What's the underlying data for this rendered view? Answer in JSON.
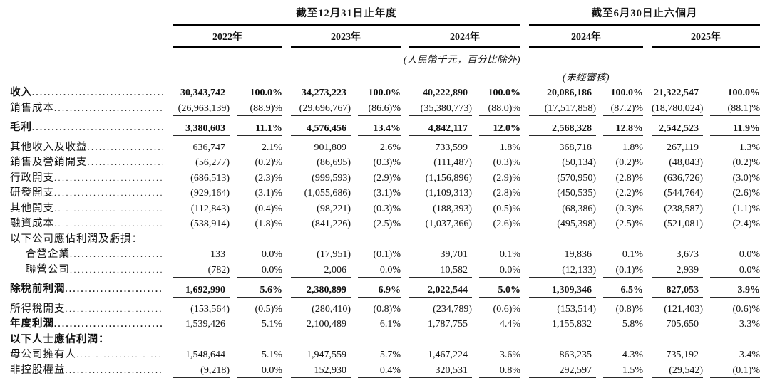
{
  "colors": {
    "background": "#ffffff",
    "text": "#111111",
    "rule": "#000000"
  },
  "table": {
    "period_groups": [
      {
        "title": "截至12月31日止年度",
        "years": [
          "2022年",
          "2023年",
          "2024年"
        ]
      },
      {
        "title": "截至6月30日止六個月",
        "years": [
          "2024年",
          "2025年"
        ]
      }
    ],
    "notes": {
      "currency_note": "(人民幣千元，百分比除外)",
      "unaudited_note": "(未經審核)"
    },
    "rows": [
      {
        "name": "row-revenue",
        "label": "收入",
        "bold": true,
        "leader": true,
        "values": [
          "30,343,742",
          "100.0%",
          "34,273,223",
          "100.0%",
          "40,222,890",
          "100.0%",
          "20,086,186",
          "100.0%",
          "21,322,547",
          "100.0%"
        ]
      },
      {
        "name": "row-cost-of-sales",
        "label": "銷售成本",
        "leader": true,
        "underline": true,
        "values": [
          "(26,963,139)",
          "(88.9)%",
          "(29,696,767)",
          "(86.6)%",
          "(35,380,773)",
          "(88.0)%",
          "(17,517,858)",
          "(87.2)%",
          "(18,780,024)",
          "(88.1)%"
        ]
      },
      {
        "name": "row-gross-profit",
        "label": "毛利",
        "bold": true,
        "leader": true,
        "underline": true,
        "gap": true,
        "values": [
          "3,380,603",
          "11.1%",
          "4,576,456",
          "13.4%",
          "4,842,117",
          "12.0%",
          "2,568,328",
          "12.8%",
          "2,542,523",
          "11.9%"
        ]
      },
      {
        "name": "row-other-income",
        "label": "其他收入及收益",
        "leader": true,
        "gap": true,
        "values": [
          "636,747",
          "2.1%",
          "901,809",
          "2.6%",
          "733,599",
          "1.8%",
          "368,718",
          "1.8%",
          "267,119",
          "1.3%"
        ]
      },
      {
        "name": "row-selling-marketing-expenses",
        "label": "銷售及營銷開支",
        "leader": true,
        "values": [
          "(56,277)",
          "(0.2)%",
          "(86,695)",
          "(0.3)%",
          "(111,487)",
          "(0.3)%",
          "(50,134)",
          "(0.2)%",
          "(48,043)",
          "(0.2)%"
        ]
      },
      {
        "name": "row-admin-expenses",
        "label": "行政開支",
        "leader": true,
        "values": [
          "(686,513)",
          "(2.3)%",
          "(999,593)",
          "(2.9)%",
          "(1,156,896)",
          "(2.9)%",
          "(570,950)",
          "(2.8)%",
          "(636,726)",
          "(3.0)%"
        ]
      },
      {
        "name": "row-rd-expenses",
        "label": "研發開支",
        "leader": true,
        "values": [
          "(929,164)",
          "(3.1)%",
          "(1,055,686)",
          "(3.1)%",
          "(1,109,313)",
          "(2.8)%",
          "(450,535)",
          "(2.2)%",
          "(544,764)",
          "(2.6)%"
        ]
      },
      {
        "name": "row-other-expenses",
        "label": "其他開支",
        "leader": true,
        "values": [
          "(112,843)",
          "(0.4)%",
          "(98,221)",
          "(0.3)%",
          "(188,393)",
          "(0.5)%",
          "(68,386)",
          "(0.3)%",
          "(238,587)",
          "(1.1)%"
        ]
      },
      {
        "name": "row-finance-costs",
        "label": "融資成本",
        "leader": true,
        "values": [
          "(538,914)",
          "(1.8)%",
          "(841,226)",
          "(2.5)%",
          "(1,037,366)",
          "(2.6)%",
          "(495,398)",
          "(2.5)%",
          "(521,081)",
          "(2.4)%"
        ]
      },
      {
        "name": "row-share-of-profits-header",
        "label": "以下公司應佔利潤及虧損："
      },
      {
        "name": "row-joint-ventures",
        "label": "合營企業",
        "indent": true,
        "leader": true,
        "values": [
          "133",
          "0.0%",
          "(17,951)",
          "(0.1)%",
          "39,701",
          "0.1%",
          "19,836",
          "0.1%",
          "3,673",
          "0.0%"
        ]
      },
      {
        "name": "row-associates",
        "label": "聯營公司",
        "indent": true,
        "leader": true,
        "underline": true,
        "values": [
          "(782)",
          "0.0%",
          "2,006",
          "0.0%",
          "10,582",
          "0.0%",
          "(12,133)",
          "(0.1)%",
          "2,939",
          "0.0%"
        ]
      },
      {
        "name": "row-profit-before-tax",
        "label": "除稅前利潤",
        "bold": true,
        "leader": true,
        "underline": true,
        "gap": true,
        "values": [
          "1,692,990",
          "5.6%",
          "2,380,899",
          "6.9%",
          "2,022,544",
          "5.0%",
          "1,309,346",
          "6.5%",
          "827,053",
          "3.9%"
        ]
      },
      {
        "name": "row-income-tax-expense",
        "label": "所得稅開支",
        "leader": true,
        "gap": true,
        "values": [
          "(153,564)",
          "(0.5)%",
          "(280,410)",
          "(0.8)%",
          "(234,789)",
          "(0.6)%",
          "(153,514)",
          "(0.8)%",
          "(121,403)",
          "(0.6)%"
        ]
      },
      {
        "name": "row-profit-for-year",
        "label": "年度利潤",
        "bold_label": true,
        "leader": true,
        "values": [
          "1,539,426",
          "5.1%",
          "2,100,489",
          "6.1%",
          "1,787,755",
          "4.4%",
          "1,155,832",
          "5.8%",
          "705,650",
          "3.3%"
        ]
      },
      {
        "name": "row-attributable-header",
        "label": "以下人士應佔利潤：",
        "bold_label": true
      },
      {
        "name": "row-owners-of-parent",
        "label": "母公司擁有人",
        "leader": true,
        "values": [
          "1,548,644",
          "5.1%",
          "1,947,559",
          "5.7%",
          "1,467,224",
          "3.6%",
          "863,235",
          "4.3%",
          "735,192",
          "3.4%"
        ]
      },
      {
        "name": "row-non-controlling-interests",
        "label": "非控股權益",
        "leader": true,
        "underline": true,
        "values": [
          "(9,218)",
          "0.0%",
          "152,930",
          "0.4%",
          "320,531",
          "0.8%",
          "292,597",
          "1.5%",
          "(29,542)",
          "(0.1)%"
        ]
      }
    ]
  }
}
